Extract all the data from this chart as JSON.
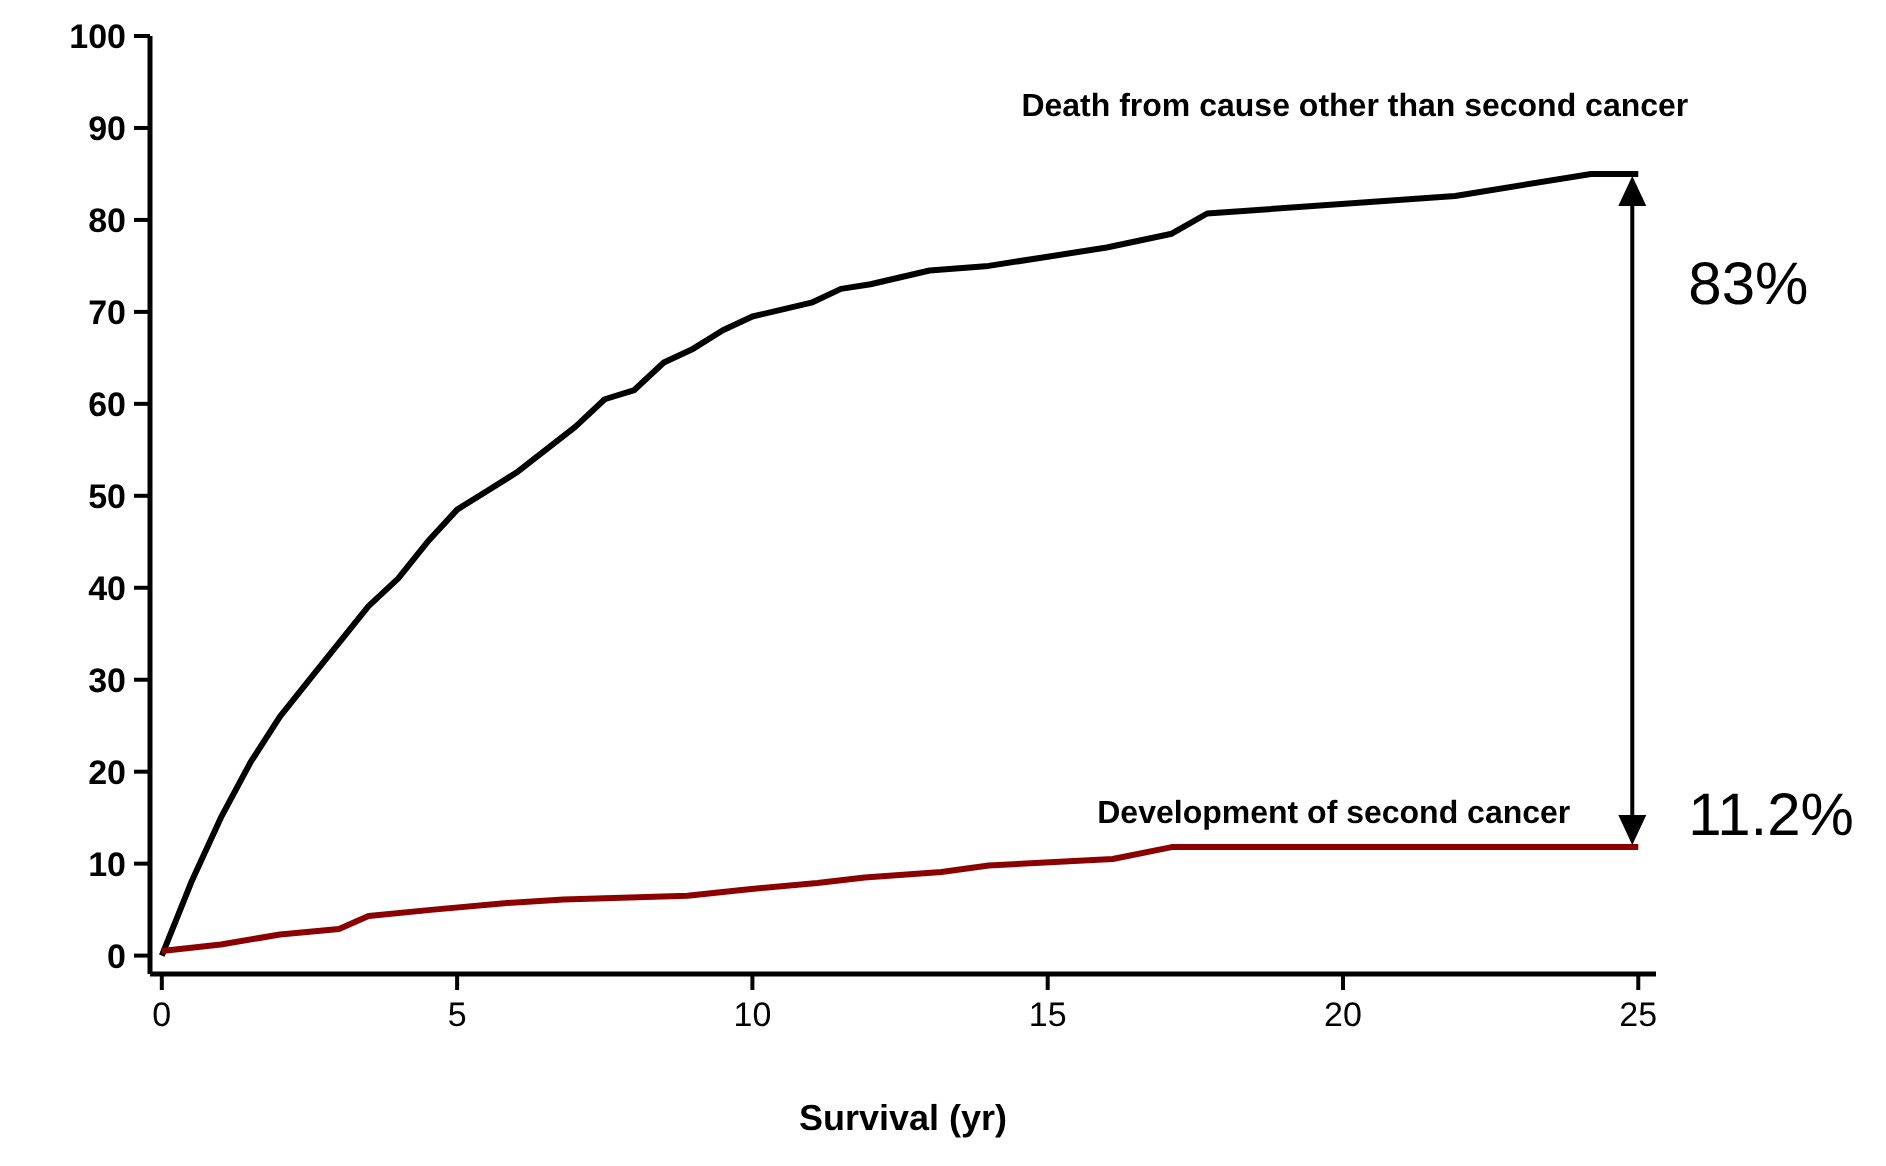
{
  "chart_data": {
    "type": "line",
    "xlabel": "Survival (yr)",
    "xlim": [
      -0.2,
      25.3
    ],
    "ylim": [
      -2,
      100
    ],
    "xticks": [
      0,
      5,
      10,
      15,
      20,
      25
    ],
    "yticks": [
      0,
      10,
      20,
      30,
      40,
      50,
      60,
      70,
      80,
      90,
      100
    ],
    "grid": false,
    "annotations": [
      "83%",
      "11.2%"
    ],
    "series": [
      {
        "name": "Death from cause other than second cancer",
        "color": "#000000",
        "x": [
          0,
          0.5,
          1,
          1.5,
          2,
          2.5,
          3,
          3.5,
          4,
          4.5,
          5,
          5.5,
          6,
          6.5,
          7,
          7.5,
          8,
          8.5,
          9,
          9.5,
          10,
          11,
          11.5,
          12,
          13,
          14,
          15,
          16,
          17.1,
          17.7,
          21.9,
          24.2,
          25
        ],
        "values": [
          0,
          8,
          15,
          21,
          26,
          30,
          34,
          38,
          41,
          45,
          48.5,
          50.5,
          52.5,
          55,
          57.5,
          60.5,
          61.5,
          64.5,
          66,
          68,
          69.5,
          71,
          72.5,
          73,
          74.5,
          75,
          76,
          77,
          78.5,
          80.7,
          82.6,
          85,
          85
        ]
      },
      {
        "name": "Development of second cancer",
        "color": "#8b0000",
        "x": [
          0,
          1,
          2,
          3,
          3.5,
          4.6,
          5.8,
          6.8,
          8.9,
          9.9,
          11.1,
          11.9,
          13.2,
          14,
          16.1,
          17.1,
          25
        ],
        "values": [
          0.5,
          1.2,
          2.3,
          2.9,
          4.3,
          5,
          5.7,
          6.1,
          6.5,
          7.2,
          7.9,
          8.5,
          9.1,
          9.8,
          10.5,
          11.8,
          11.8
        ]
      }
    ]
  }
}
